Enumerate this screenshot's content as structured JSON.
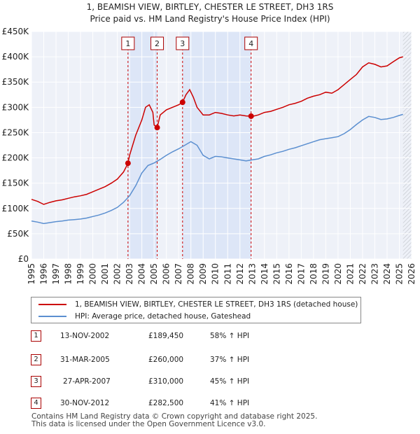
{
  "chart_data": {
    "type": "line",
    "title": "1, BEAMISH VIEW, BIRTLEY, CHESTER LE STREET, DH3 1RS",
    "subtitle": "Price paid vs. HM Land Registry's House Price Index (HPI)",
    "xlim": [
      1995,
      2026
    ],
    "ylim": [
      0,
      450000
    ],
    "x_ticks": [
      "1995",
      "1996",
      "1997",
      "1998",
      "1999",
      "2000",
      "2001",
      "2002",
      "2003",
      "2004",
      "2005",
      "2006",
      "2007",
      "2008",
      "2009",
      "2010",
      "2011",
      "2012",
      "2013",
      "2014",
      "2015",
      "2016",
      "2017",
      "2018",
      "2019",
      "2020",
      "2021",
      "2022",
      "2023",
      "2024",
      "2025",
      "2026"
    ],
    "y_ticks": [
      "£0",
      "£50K",
      "£100K",
      "£150K",
      "£200K",
      "£250K",
      "£300K",
      "£350K",
      "£400K",
      "£450K"
    ],
    "colors": {
      "property": "#cc0000",
      "hpi": "#5b8fd0",
      "shade": "#dde6f7",
      "marker_box": "#aa0000"
    },
    "series": [
      {
        "name": "1, BEAMISH VIEW, BIRTLEY, CHESTER LE STREET, DH3 1RS (detached house)",
        "x": [
          1995.0,
          1995.5,
          1996.0,
          1996.5,
          1997.0,
          1997.5,
          1998.0,
          1998.5,
          1999.0,
          1999.5,
          2000.0,
          2000.5,
          2001.0,
          2001.5,
          2002.0,
          2002.5,
          2002.87,
          2003.0,
          2003.5,
          2004.0,
          2004.3,
          2004.6,
          2004.9,
          2005.0,
          2005.25,
          2005.5,
          2006.0,
          2006.5,
          2007.0,
          2007.32,
          2007.6,
          2007.9,
          2008.2,
          2008.5,
          2009.0,
          2009.5,
          2010.0,
          2010.5,
          2011.0,
          2011.5,
          2012.0,
          2012.5,
          2012.91,
          2013.0,
          2013.5,
          2014.0,
          2014.5,
          2015.0,
          2015.5,
          2016.0,
          2016.5,
          2017.0,
          2017.5,
          2018.0,
          2018.5,
          2019.0,
          2019.5,
          2020.0,
          2020.5,
          2021.0,
          2021.5,
          2022.0,
          2022.5,
          2023.0,
          2023.5,
          2024.0,
          2024.5,
          2025.0,
          2025.3
        ],
        "values": [
          118000,
          114000,
          108000,
          112000,
          115000,
          117000,
          120000,
          123000,
          125000,
          128000,
          133000,
          138000,
          143000,
          150000,
          158000,
          172000,
          189450,
          205000,
          245000,
          275000,
          300000,
          305000,
          290000,
          265000,
          260000,
          285000,
          295000,
          300000,
          305000,
          310000,
          325000,
          335000,
          320000,
          300000,
          285000,
          285000,
          290000,
          288000,
          285000,
          283000,
          285000,
          283000,
          282500,
          282000,
          285000,
          290000,
          292000,
          296000,
          300000,
          305000,
          308000,
          312000,
          318000,
          322000,
          325000,
          330000,
          328000,
          335000,
          345000,
          355000,
          365000,
          380000,
          388000,
          385000,
          380000,
          382000,
          390000,
          398000,
          400000
        ]
      },
      {
        "name": "HPI: Average price, detached house, Gateshead",
        "x": [
          1995.0,
          1995.5,
          1996.0,
          1996.5,
          1997.0,
          1997.5,
          1998.0,
          1998.5,
          1999.0,
          1999.5,
          2000.0,
          2000.5,
          2001.0,
          2001.5,
          2002.0,
          2002.5,
          2003.0,
          2003.5,
          2004.0,
          2004.5,
          2005.0,
          2005.5,
          2006.0,
          2006.5,
          2007.0,
          2007.5,
          2008.0,
          2008.5,
          2009.0,
          2009.5,
          2010.0,
          2010.5,
          2011.0,
          2011.5,
          2012.0,
          2012.5,
          2013.0,
          2013.5,
          2014.0,
          2014.5,
          2015.0,
          2015.5,
          2016.0,
          2016.5,
          2017.0,
          2017.5,
          2018.0,
          2018.5,
          2019.0,
          2019.5,
          2020.0,
          2020.5,
          2021.0,
          2021.5,
          2022.0,
          2022.5,
          2023.0,
          2023.5,
          2024.0,
          2024.5,
          2025.0,
          2025.3
        ],
        "values": [
          75000,
          73000,
          70000,
          72000,
          74000,
          75000,
          77000,
          78000,
          79000,
          81000,
          84000,
          87000,
          91000,
          96000,
          102000,
          112000,
          125000,
          145000,
          170000,
          185000,
          190000,
          197000,
          205000,
          212000,
          218000,
          225000,
          232000,
          225000,
          205000,
          198000,
          203000,
          202000,
          200000,
          198000,
          196000,
          194000,
          196000,
          198000,
          203000,
          206000,
          210000,
          213000,
          217000,
          220000,
          224000,
          228000,
          232000,
          236000,
          238000,
          240000,
          242000,
          248000,
          256000,
          266000,
          275000,
          282000,
          280000,
          276000,
          277000,
          280000,
          284000,
          286000
        ]
      }
    ],
    "transactions": [
      {
        "label": "1",
        "date": "13-NOV-2002",
        "price": "£189,450",
        "hpi": "58% ↑ HPI",
        "x": 2002.87,
        "y": 189450
      },
      {
        "label": "2",
        "date": "31-MAR-2005",
        "price": "£260,000",
        "hpi": "37% ↑ HPI",
        "x": 2005.25,
        "y": 260000
      },
      {
        "label": "3",
        "date": "27-APR-2007",
        "price": "£310,000",
        "hpi": "45% ↑ HPI",
        "x": 2007.32,
        "y": 310000
      },
      {
        "label": "4",
        "date": "30-NOV-2012",
        "price": "£282,500",
        "hpi": "41% ↑ HPI",
        "x": 2012.91,
        "y": 282500
      }
    ],
    "shaded_spans": [
      [
        2002.87,
        2005.25
      ],
      [
        2007.32,
        2012.91
      ]
    ],
    "forecast_start": 2025.3
  },
  "legend": {
    "property_label": "1, BEAMISH VIEW, BIRTLEY, CHESTER LE STREET, DH3 1RS (detached house)",
    "hpi_label": "HPI: Average price, detached house, Gateshead"
  },
  "footer": {
    "line1": "Contains HM Land Registry data © Crown copyright and database right 2025.",
    "line2": "This data is licensed under the Open Government Licence v3.0."
  }
}
